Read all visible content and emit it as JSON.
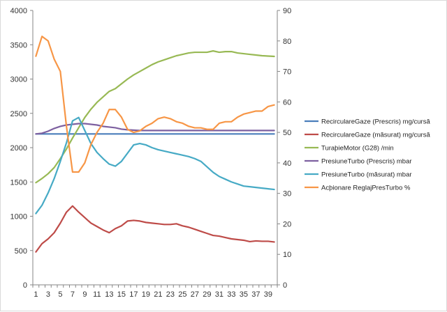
{
  "chart_data": {
    "type": "line",
    "title": "",
    "xlabel": "",
    "ylabel": "",
    "x": [
      1,
      2,
      3,
      4,
      5,
      6,
      7,
      8,
      9,
      10,
      11,
      12,
      13,
      14,
      15,
      16,
      17,
      18,
      19,
      20,
      21,
      22,
      23,
      24,
      25,
      26,
      27,
      28,
      29,
      30,
      31,
      32,
      33,
      34,
      35,
      36,
      37,
      38,
      39,
      40
    ],
    "x_ticks": [
      1,
      3,
      5,
      7,
      9,
      11,
      13,
      15,
      17,
      19,
      21,
      23,
      25,
      27,
      29,
      31,
      33,
      35,
      37,
      39
    ],
    "ylim": [
      0,
      4000
    ],
    "y_ticks": [
      0,
      500,
      1000,
      1500,
      2000,
      2500,
      3000,
      3500,
      4000
    ],
    "y2lim": [
      0,
      90
    ],
    "y2_ticks": [
      0,
      10,
      20,
      30,
      40,
      50,
      60,
      70,
      80,
      90
    ],
    "legend_position": "right",
    "grid": false,
    "series": [
      {
        "name": "RecirculareGaze (Prescris)  mg/cursă",
        "axis": "left",
        "color": "#4a7ebb",
        "values": [
          2200,
          2200,
          2200,
          2200,
          2200,
          2200,
          2200,
          2200,
          2200,
          2200,
          2200,
          2200,
          2200,
          2200,
          2200,
          2200,
          2200,
          2200,
          2200,
          2200,
          2200,
          2200,
          2200,
          2200,
          2200,
          2200,
          2200,
          2200,
          2200,
          2200,
          2200,
          2200,
          2200,
          2200,
          2200,
          2200,
          2200,
          2200,
          2200,
          2200
        ]
      },
      {
        "name": "RecirculareGaze (măsurat)  mg/cursă",
        "axis": "left",
        "color": "#be4b48",
        "values": [
          480,
          600,
          670,
          760,
          900,
          1060,
          1150,
          1060,
          980,
          900,
          850,
          800,
          760,
          820,
          860,
          930,
          940,
          930,
          910,
          900,
          890,
          880,
          880,
          890,
          860,
          840,
          810,
          780,
          750,
          720,
          710,
          690,
          670,
          660,
          650,
          630,
          640,
          635,
          635,
          625
        ]
      },
      {
        "name": "TuraþieMotor (G28)  /min",
        "axis": "left",
        "color": "#98b954",
        "values": [
          1490,
          1550,
          1620,
          1710,
          1840,
          1980,
          2140,
          2290,
          2440,
          2560,
          2660,
          2740,
          2820,
          2860,
          2930,
          3000,
          3060,
          3110,
          3160,
          3210,
          3250,
          3280,
          3310,
          3340,
          3360,
          3380,
          3390,
          3390,
          3390,
          3410,
          3390,
          3400,
          3400,
          3380,
          3370,
          3360,
          3350,
          3340,
          3335,
          3330
        ]
      },
      {
        "name": "PresiuneTurbo (Prescris)  mbar",
        "axis": "left",
        "color": "#7d60a0",
        "values": [
          2200,
          2210,
          2240,
          2280,
          2310,
          2330,
          2340,
          2350,
          2350,
          2340,
          2330,
          2310,
          2300,
          2290,
          2270,
          2260,
          2255,
          2250,
          2250,
          2250,
          2250,
          2250,
          2250,
          2250,
          2250,
          2250,
          2250,
          2250,
          2250,
          2250,
          2250,
          2250,
          2250,
          2250,
          2250,
          2250,
          2250,
          2250,
          2250,
          2250
        ]
      },
      {
        "name": "PresiuneTurbo (măsurat)  mbar",
        "axis": "left",
        "color": "#46aac5",
        "values": [
          1040,
          1160,
          1340,
          1550,
          1800,
          2070,
          2390,
          2440,
          2250,
          2060,
          1930,
          1840,
          1760,
          1730,
          1800,
          1920,
          2040,
          2060,
          2040,
          2000,
          1970,
          1950,
          1930,
          1910,
          1890,
          1870,
          1840,
          1800,
          1720,
          1640,
          1580,
          1540,
          1500,
          1470,
          1440,
          1430,
          1420,
          1410,
          1400,
          1390
        ]
      },
      {
        "name": "Acþionare ReglajPresTurbo  %",
        "axis": "right",
        "color": "#f79646",
        "values": [
          75,
          81.5,
          80,
          74,
          70,
          52,
          37,
          37,
          40,
          46,
          50,
          53,
          57.5,
          57.5,
          55,
          51,
          50,
          50.5,
          52,
          53,
          54.5,
          55,
          54.5,
          53.5,
          53,
          52,
          51.5,
          51.5,
          51,
          51,
          53,
          53.5,
          53.5,
          55,
          56,
          56.5,
          57,
          57,
          58.5,
          59
        ]
      }
    ]
  }
}
